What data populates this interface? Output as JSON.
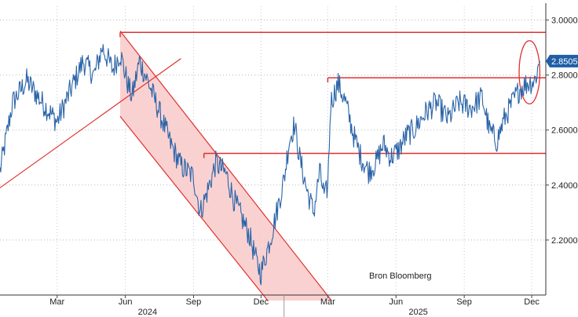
{
  "chart_data": {
    "type": "line",
    "title": "",
    "xlabel": "",
    "ylabel": "",
    "x_range": [
      "2023-12-15",
      "2025-12-20"
    ],
    "ylim": [
      2.0,
      3.05
    ],
    "y_ticks": [
      {
        "value": 3.0,
        "label": "3.0000"
      },
      {
        "value": 2.8,
        "label": "2.8000"
      },
      {
        "value": 2.6,
        "label": "2.6000"
      },
      {
        "value": 2.4,
        "label": "2.4000"
      },
      {
        "value": 2.2,
        "label": "2.2000"
      }
    ],
    "x_ticks": [
      {
        "date": "2024-03-01",
        "label": "Mar"
      },
      {
        "date": "2024-06-01",
        "label": "Jun"
      },
      {
        "date": "2024-09-01",
        "label": "Sep"
      },
      {
        "date": "2024-12-01",
        "label": "Dec"
      },
      {
        "date": "2025-03-01",
        "label": "Mar"
      },
      {
        "date": "2025-06-01",
        "label": "Jun"
      },
      {
        "date": "2025-09-01",
        "label": "Sep"
      },
      {
        "date": "2025-12-01",
        "label": "Dec"
      }
    ],
    "year_labels": [
      {
        "date": "2024-07-01",
        "label": "2024"
      },
      {
        "date": "2025-07-01",
        "label": "2025"
      }
    ],
    "year_divider": "2025-01-01",
    "last_value": {
      "value": 2.8505,
      "label": "2.8505",
      "color": "#1f5fa8"
    },
    "annotation": "Bron Bloomberg",
    "series": [
      {
        "color": "#2a64a8",
        "points": [
          [
            "2023-12-15",
            2.45
          ],
          [
            "2024-01-01",
            2.7
          ],
          [
            "2024-01-20",
            2.78
          ],
          [
            "2024-02-10",
            2.7
          ],
          [
            "2024-03-01",
            2.63
          ],
          [
            "2024-03-20",
            2.75
          ],
          [
            "2024-04-05",
            2.85
          ],
          [
            "2024-04-20",
            2.8
          ],
          [
            "2024-05-01",
            2.9
          ],
          [
            "2024-05-15",
            2.82
          ],
          [
            "2024-05-25",
            2.88
          ],
          [
            "2024-06-05",
            2.76
          ],
          [
            "2024-06-10",
            2.72
          ],
          [
            "2024-06-20",
            2.85
          ],
          [
            "2024-07-01",
            2.78
          ],
          [
            "2024-07-15",
            2.68
          ],
          [
            "2024-08-01",
            2.55
          ],
          [
            "2024-08-15",
            2.47
          ],
          [
            "2024-09-01",
            2.43
          ],
          [
            "2024-09-10",
            2.3
          ],
          [
            "2024-09-20",
            2.38
          ],
          [
            "2024-10-01",
            2.48
          ],
          [
            "2024-10-15",
            2.44
          ],
          [
            "2024-10-25",
            2.35
          ],
          [
            "2024-11-05",
            2.28
          ],
          [
            "2024-11-15",
            2.22
          ],
          [
            "2024-11-25",
            2.12
          ],
          [
            "2024-12-01",
            2.08
          ],
          [
            "2024-12-08",
            2.15
          ],
          [
            "2024-12-15",
            2.22
          ],
          [
            "2024-12-22",
            2.3
          ],
          [
            "2025-01-01",
            2.42
          ],
          [
            "2025-01-08",
            2.56
          ],
          [
            "2025-01-15",
            2.62
          ],
          [
            "2025-01-22",
            2.5
          ],
          [
            "2025-02-01",
            2.38
          ],
          [
            "2025-02-10",
            2.3
          ],
          [
            "2025-02-18",
            2.45
          ],
          [
            "2025-02-25",
            2.35
          ],
          [
            "2025-03-01",
            2.4
          ],
          [
            "2025-03-05",
            2.7
          ],
          [
            "2025-03-15",
            2.77
          ],
          [
            "2025-03-25",
            2.7
          ],
          [
            "2025-04-05",
            2.58
          ],
          [
            "2025-04-15",
            2.5
          ],
          [
            "2025-04-25",
            2.45
          ],
          [
            "2025-05-05",
            2.48
          ],
          [
            "2025-05-15",
            2.55
          ],
          [
            "2025-05-25",
            2.5
          ],
          [
            "2025-06-05",
            2.53
          ],
          [
            "2025-06-15",
            2.58
          ],
          [
            "2025-06-25",
            2.6
          ],
          [
            "2025-07-10",
            2.66
          ],
          [
            "2025-07-25",
            2.7
          ],
          [
            "2025-08-10",
            2.64
          ],
          [
            "2025-08-25",
            2.7
          ],
          [
            "2025-09-10",
            2.68
          ],
          [
            "2025-09-25",
            2.72
          ],
          [
            "2025-10-05",
            2.6
          ],
          [
            "2025-10-15",
            2.56
          ],
          [
            "2025-10-25",
            2.64
          ],
          [
            "2025-11-05",
            2.7
          ],
          [
            "2025-11-15",
            2.75
          ],
          [
            "2025-11-25",
            2.77
          ],
          [
            "2025-12-05",
            2.78
          ],
          [
            "2025-12-12",
            2.85
          ]
        ]
      }
    ],
    "overlays": [
      {
        "type": "band",
        "fill": "#f9c9c9",
        "stroke": "#e03030",
        "top": [
          [
            "2024-05-25",
            2.96
          ],
          [
            "2025-03-06",
            1.98
          ]
        ],
        "bottom": [
          [
            "2024-05-25",
            2.65
          ],
          [
            "2024-12-10",
            1.98
          ]
        ]
      },
      {
        "type": "line",
        "stroke": "#e03030",
        "points": [
          [
            "2023-12-15",
            2.39
          ],
          [
            "2024-08-15",
            2.86
          ]
        ]
      },
      {
        "type": "hline",
        "stroke": "#e03030",
        "y": 2.955,
        "from": "2024-05-25",
        "to": "2025-12-20"
      },
      {
        "type": "hline",
        "stroke": "#e03030",
        "y": 2.79,
        "from": "2025-03-01",
        "to": "2025-12-20"
      },
      {
        "type": "hline",
        "stroke": "#e03030",
        "y": 2.515,
        "from": "2024-09-15",
        "to": "2025-12-20"
      },
      {
        "type": "ellipse",
        "stroke": "#e03030",
        "center": [
          "2025-11-28",
          2.81
        ],
        "rx_days": 14,
        "ry_value": 0.115
      }
    ]
  }
}
